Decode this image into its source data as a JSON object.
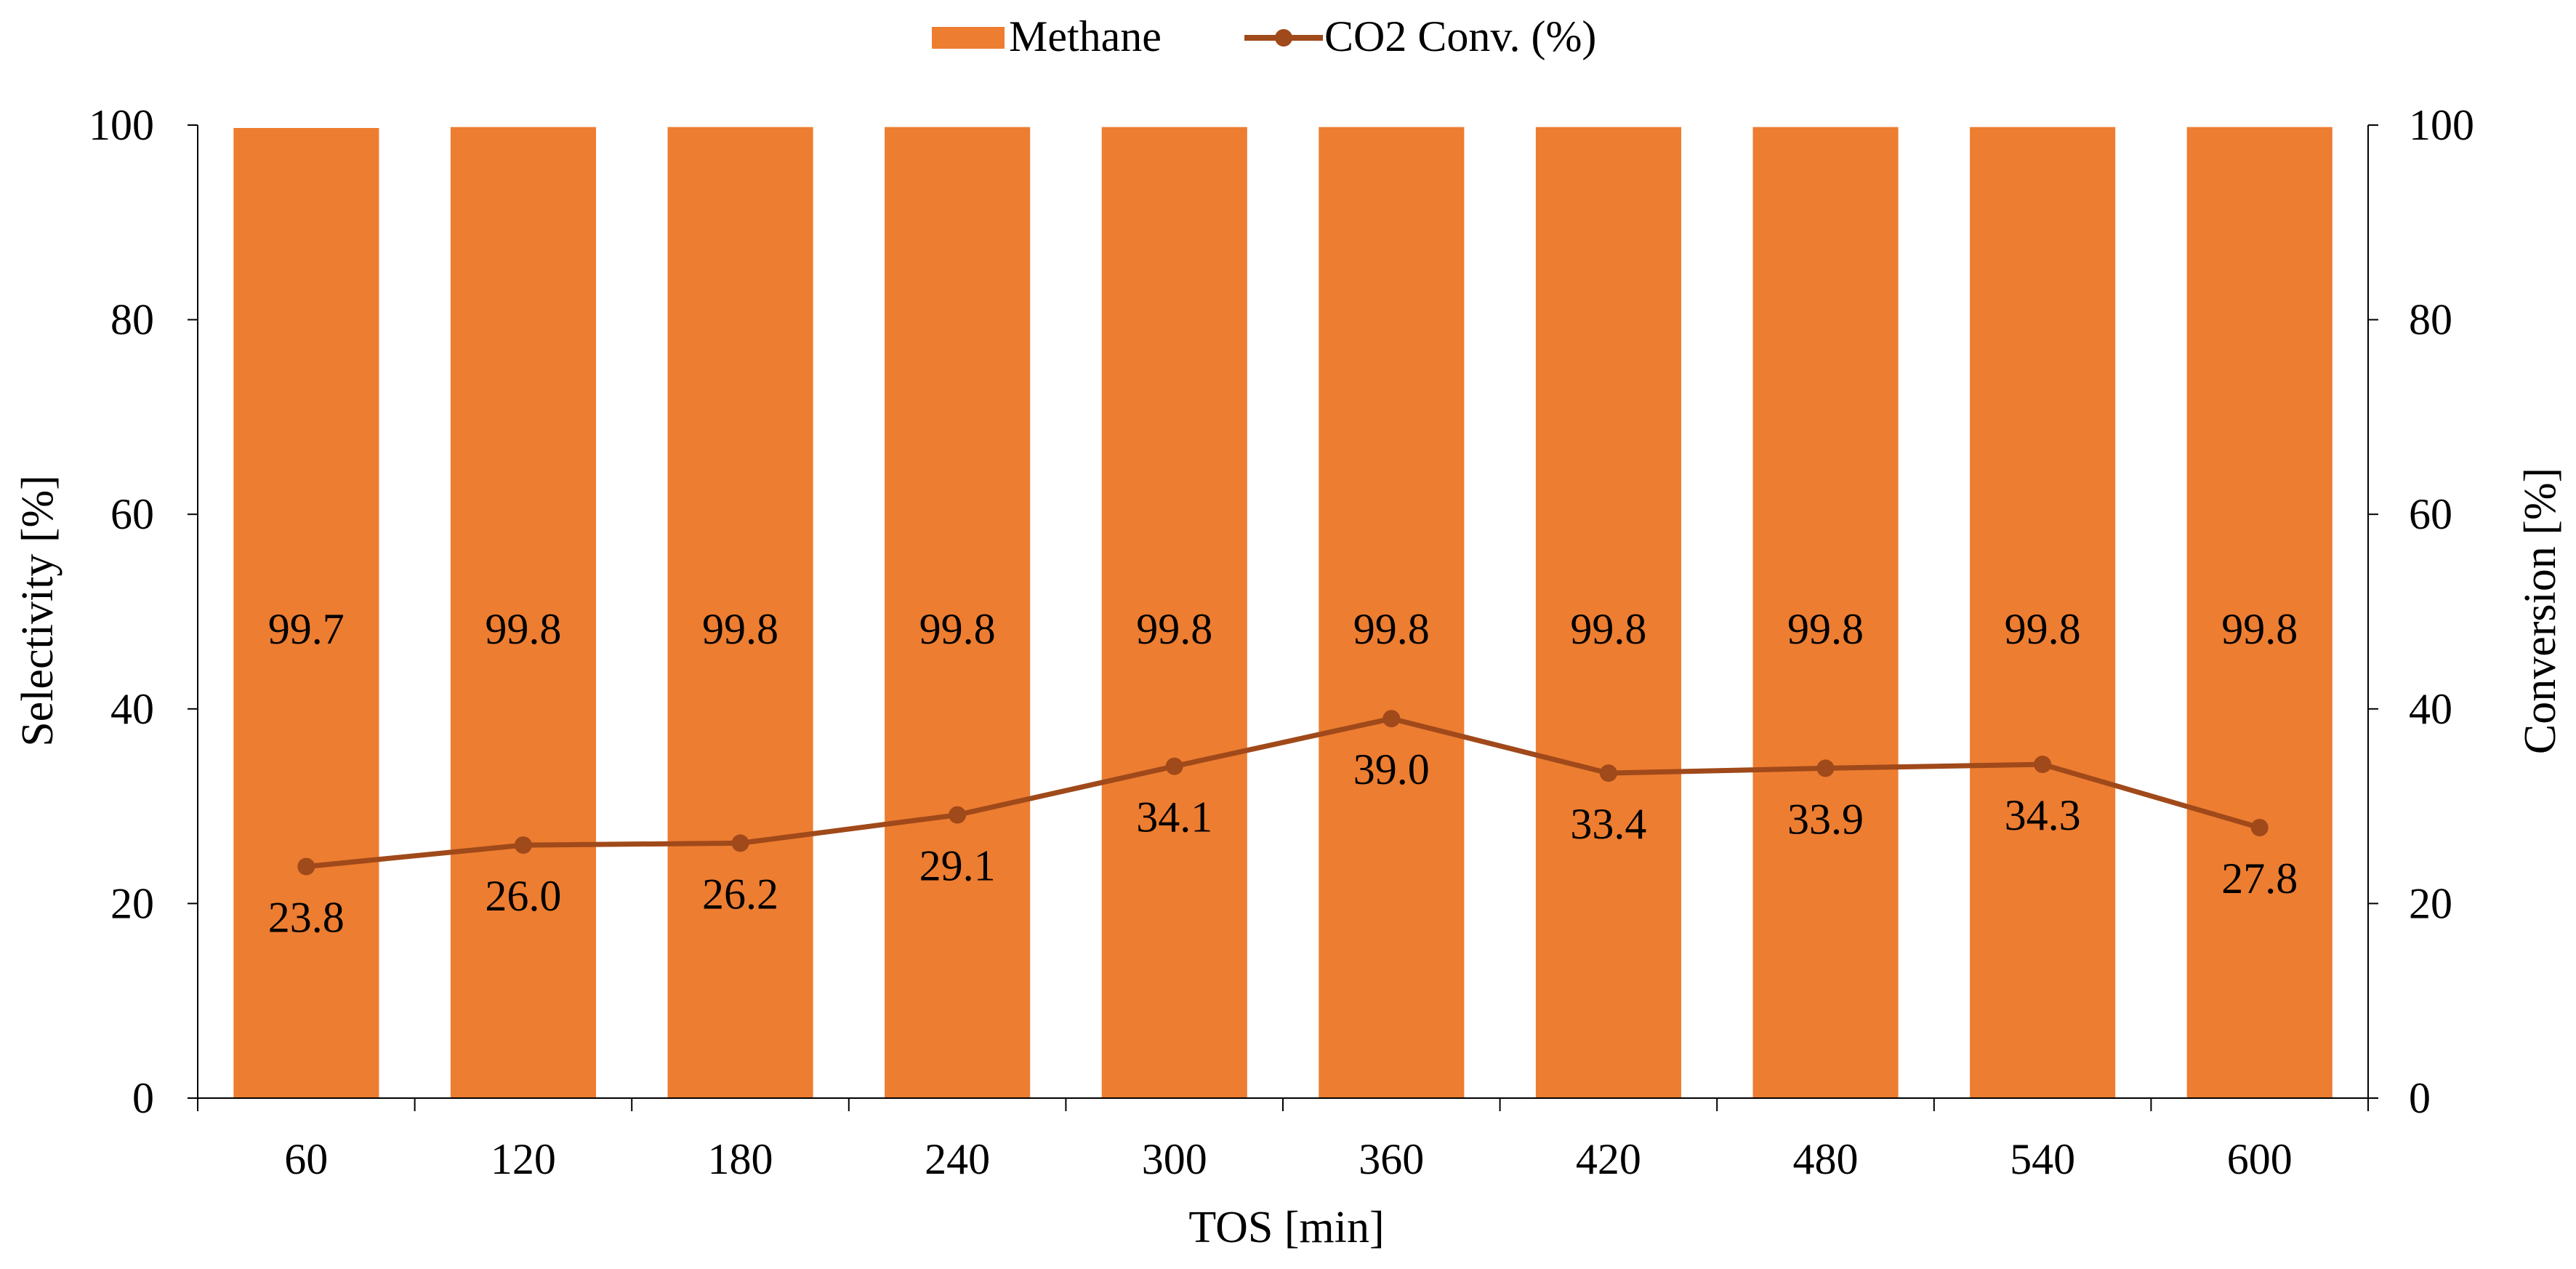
{
  "chart_data": {
    "type": "bar+line",
    "categories": [
      "60",
      "120",
      "180",
      "240",
      "300",
      "360",
      "420",
      "480",
      "540",
      "600"
    ],
    "series": [
      {
        "name": "Methane",
        "type": "bar",
        "axis": "left",
        "values": [
          99.7,
          99.8,
          99.8,
          99.8,
          99.8,
          99.8,
          99.8,
          99.8,
          99.8,
          99.8
        ],
        "labels": [
          "99.7",
          "99.8",
          "99.8",
          "99.8",
          "99.8",
          "99.8",
          "99.8",
          "99.8",
          "99.8",
          "99.8"
        ],
        "color": "#ED7D31"
      },
      {
        "name": "CO2 Conv. (%)",
        "type": "line",
        "axis": "right",
        "values": [
          23.8,
          26.0,
          26.2,
          29.1,
          34.1,
          39.0,
          33.4,
          33.9,
          34.3,
          27.8
        ],
        "labels": [
          "23.8",
          "26.0",
          "26.2",
          "29.1",
          "34.1",
          "39.0",
          "33.4",
          "33.9",
          "34.3",
          "27.8"
        ],
        "label_side": [
          "below",
          "below",
          "below",
          "below",
          "below",
          "below",
          "below",
          "below",
          "below",
          "below"
        ],
        "color": "#A0491A"
      }
    ],
    "xlabel": "TOS [min]",
    "ylabel": "Selectivity [%]",
    "y2label": "Conversion  [%]",
    "ylim": [
      0,
      100
    ],
    "y2lim": [
      0,
      100
    ],
    "yticks": [
      "0",
      "20",
      "40",
      "60",
      "80",
      "100"
    ],
    "y2ticks": [
      "0",
      "20",
      "40",
      "60",
      "80",
      "100"
    ],
    "grid": false,
    "legend_position": "top-center"
  }
}
